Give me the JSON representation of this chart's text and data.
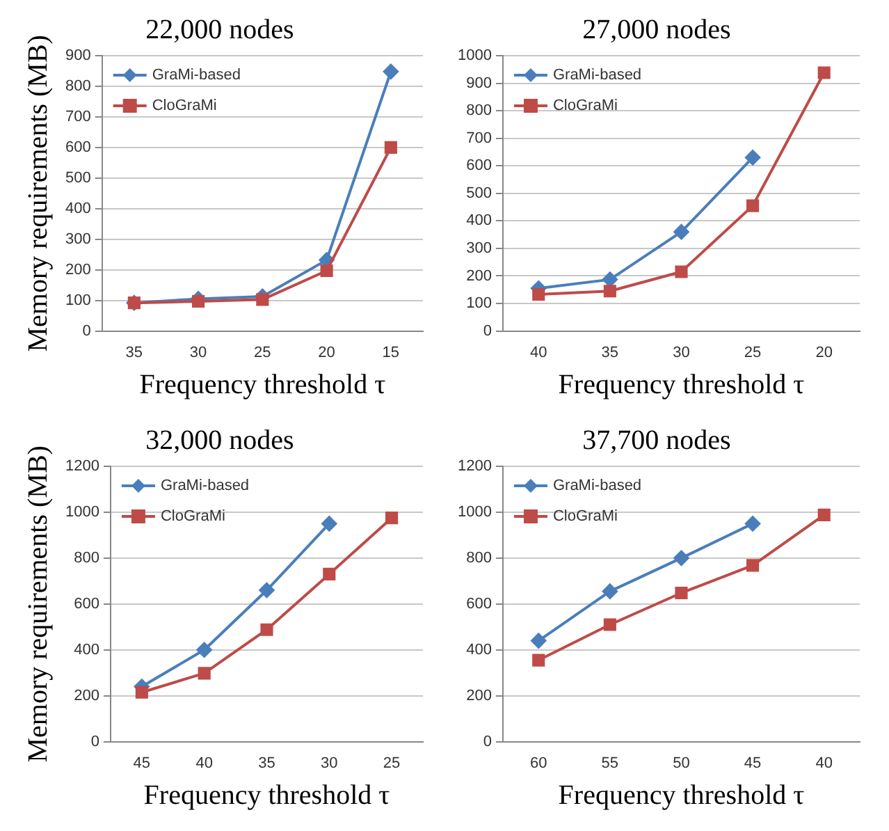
{
  "chart_data": [
    {
      "type": "line",
      "title": "22,000 nodes",
      "xlabel": "Frequency threshold τ",
      "ylabel": "Memory requirements (MB)",
      "categories": [
        "35",
        "30",
        "25",
        "20",
        "15"
      ],
      "ylim": [
        0,
        900
      ],
      "yticks": [
        0,
        100,
        200,
        300,
        400,
        500,
        600,
        700,
        800,
        900
      ],
      "grid": "y",
      "legend": "top left",
      "line_style": "solid",
      "series": [
        {
          "name": "GraMi-based",
          "color": "#4a7ebb",
          "marker": "diamond",
          "values": [
            92,
            105,
            113,
            232,
            848
          ]
        },
        {
          "name": "CloGraMi",
          "color": "#be4b48",
          "marker": "square",
          "values": [
            92,
            97,
            103,
            197,
            600
          ]
        }
      ]
    },
    {
      "type": "line",
      "title": "27,000 nodes",
      "xlabel": "Frequency threshold τ",
      "categories": [
        "40",
        "35",
        "30",
        "25",
        "20"
      ],
      "ylim": [
        0,
        1000
      ],
      "yticks": [
        0,
        100,
        200,
        300,
        400,
        500,
        600,
        700,
        800,
        900,
        1000
      ],
      "grid": "y",
      "legend": "top left",
      "line_style": "solid",
      "series": [
        {
          "name": "GraMi-based",
          "color": "#4a7ebb",
          "marker": "diamond",
          "values": [
            155,
            187,
            360,
            630,
            null
          ]
        },
        {
          "name": "CloGraMi",
          "color": "#be4b48",
          "marker": "square",
          "values": [
            133,
            145,
            215,
            455,
            938
          ]
        }
      ]
    },
    {
      "type": "line",
      "title": "32,000 nodes",
      "xlabel": "Frequency threshold τ",
      "ylabel": "Memory requirements (MB)",
      "categories": [
        "45",
        "40",
        "35",
        "30",
        "25"
      ],
      "ylim": [
        0,
        1200
      ],
      "yticks": [
        0,
        200,
        400,
        600,
        800,
        1000,
        1200
      ],
      "grid": "y",
      "legend": "top left",
      "line_style": "solid",
      "series": [
        {
          "name": "GraMi-based",
          "color": "#4a7ebb",
          "marker": "diamond",
          "values": [
            240,
            400,
            660,
            950,
            null
          ]
        },
        {
          "name": "CloGraMi",
          "color": "#be4b48",
          "marker": "square",
          "values": [
            215,
            298,
            488,
            730,
            975
          ]
        }
      ]
    },
    {
      "type": "line",
      "title": "37,700 nodes",
      "xlabel": "Frequency threshold τ",
      "categories": [
        "60",
        "55",
        "50",
        "45",
        "40"
      ],
      "ylim": [
        0,
        1200
      ],
      "yticks": [
        0,
        200,
        400,
        600,
        800,
        1000,
        1200
      ],
      "grid": "y",
      "legend": "top left",
      "line_style": "solid",
      "series": [
        {
          "name": "GraMi-based",
          "color": "#4a7ebb",
          "marker": "diamond",
          "values": [
            440,
            655,
            800,
            950,
            null
          ]
        },
        {
          "name": "CloGraMi",
          "color": "#be4b48",
          "marker": "square",
          "values": [
            355,
            510,
            648,
            768,
            988
          ]
        }
      ]
    }
  ]
}
